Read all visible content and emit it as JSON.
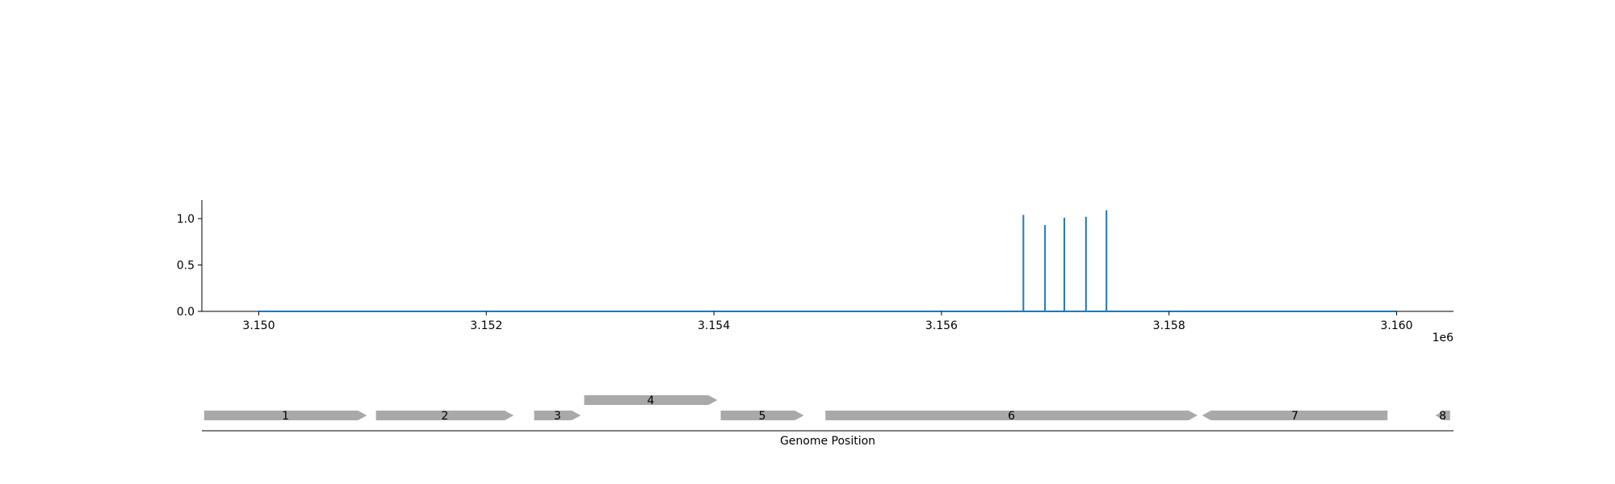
{
  "chart_data": [
    {
      "type": "line",
      "title": "",
      "xlabel": "",
      "ylabel": "",
      "xlim": [
        3149500,
        3160500
      ],
      "ylim": [
        0,
        1.2
      ],
      "x_offset_label": "1e6",
      "x_ticks": [
        3150000,
        3152000,
        3154000,
        3156000,
        3158000,
        3160000
      ],
      "x_tick_labels": [
        "3.150",
        "3.152",
        "3.154",
        "3.156",
        "3.158",
        "3.160"
      ],
      "y_ticks": [
        0,
        0.5,
        1.0
      ],
      "y_tick_labels": [
        "0.0",
        "0.5",
        "1.0"
      ],
      "grid": false,
      "color": "#1f77b4",
      "baseline": {
        "x": [
          3150000,
          3160000
        ],
        "y": 0
      },
      "spikes": [
        {
          "x": 3156720,
          "y": 1.04
        },
        {
          "x": 3156910,
          "y": 0.93
        },
        {
          "x": 3157080,
          "y": 1.01
        },
        {
          "x": 3157270,
          "y": 1.02
        },
        {
          "x": 3157450,
          "y": 1.09
        }
      ]
    },
    {
      "type": "gene_track",
      "xlabel": "Genome Position",
      "color": "#a9a9a9",
      "genes": [
        {
          "label": "1",
          "start": 3149520,
          "end": 3150950,
          "strand": "+",
          "row": 0
        },
        {
          "label": "2",
          "start": 3151030,
          "end": 3152240,
          "strand": "+",
          "row": 0
        },
        {
          "label": "3",
          "start": 3152420,
          "end": 3152830,
          "strand": "+",
          "row": 0
        },
        {
          "label": "4",
          "start": 3152860,
          "end": 3154030,
          "strand": "+",
          "row": 1
        },
        {
          "label": "5",
          "start": 3154060,
          "end": 3154790,
          "strand": "+",
          "row": 0
        },
        {
          "label": "6",
          "start": 3154980,
          "end": 3158250,
          "strand": "+",
          "row": 0
        },
        {
          "label": "7",
          "start": 3158290,
          "end": 3159920,
          "strand": "-",
          "row": 0
        },
        {
          "label": "8",
          "start": 3160340,
          "end": 3160470,
          "strand": "-",
          "row": 0
        }
      ]
    }
  ]
}
